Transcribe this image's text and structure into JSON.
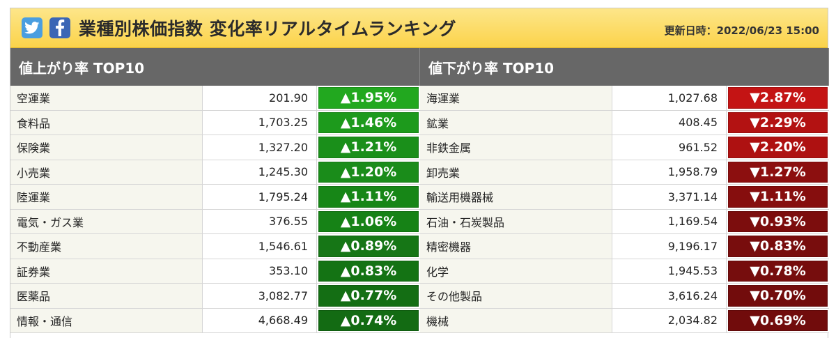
{
  "header": {
    "title": "業種別株価指数 変化率リアルタイムランキング",
    "updated": "更新日時：2022/06/23 15:00"
  },
  "gainers": {
    "heading": "値上がり率 TOP10",
    "rows": [
      {
        "name": "空運業",
        "value": "201.90",
        "change": "▲1.95%",
        "color": "#22a81f"
      },
      {
        "name": "食料品",
        "value": "1,703.25",
        "change": "▲1.46%",
        "color": "#1d9a1c"
      },
      {
        "name": "保険業",
        "value": "1,327.20",
        "change": "▲1.21%",
        "color": "#1a8f1a"
      },
      {
        "name": "小売業",
        "value": "1,245.30",
        "change": "▲1.20%",
        "color": "#1a8c1a"
      },
      {
        "name": "陸運業",
        "value": "1,795.24",
        "change": "▲1.11%",
        "color": "#178617"
      },
      {
        "name": "電気・ガス業",
        "value": "376.55",
        "change": "▲1.06%",
        "color": "#168216"
      },
      {
        "name": "不動産業",
        "value": "1,546.61",
        "change": "▲0.89%",
        "color": "#167616"
      },
      {
        "name": "証券業",
        "value": "353.10",
        "change": "▲0.83%",
        "color": "#147314"
      },
      {
        "name": "医薬品",
        "value": "3,082.77",
        "change": "▲0.77%",
        "color": "#146e14"
      },
      {
        "name": "情報・通信",
        "value": "4,668.49",
        "change": "▲0.74%",
        "color": "#136b13"
      }
    ]
  },
  "losers": {
    "heading": "値下がり率 TOP10",
    "rows": [
      {
        "name": "海運業",
        "value": "1,027.68",
        "change": "▼2.87%",
        "color": "#c41414"
      },
      {
        "name": "鉱業",
        "value": "408.45",
        "change": "▼2.29%",
        "color": "#b31212"
      },
      {
        "name": "非鉄金属",
        "value": "961.52",
        "change": "▼2.20%",
        "color": "#ae1111"
      },
      {
        "name": "卸売業",
        "value": "1,958.79",
        "change": "▼1.27%",
        "color": "#8c0f0f"
      },
      {
        "name": "輸送用機器械",
        "value": "3,371.14",
        "change": "▼1.11%",
        "color": "#860e0e"
      },
      {
        "name": "石油・石炭製品",
        "value": "1,169.54",
        "change": "▼0.93%",
        "color": "#7c0d0d"
      },
      {
        "name": "精密機器",
        "value": "9,196.17",
        "change": "▼0.83%",
        "color": "#780d0d"
      },
      {
        "name": "化学",
        "value": "1,945.53",
        "change": "▼0.78%",
        "color": "#760d0d"
      },
      {
        "name": "その他製品",
        "value": "3,616.24",
        "change": "▼0.70%",
        "color": "#720c0c"
      },
      {
        "name": "機械",
        "value": "2,034.82",
        "change": "▼0.69%",
        "color": "#710c0c"
      }
    ]
  },
  "icons": {
    "twitter": "twitter-icon",
    "facebook": "facebook-icon"
  }
}
